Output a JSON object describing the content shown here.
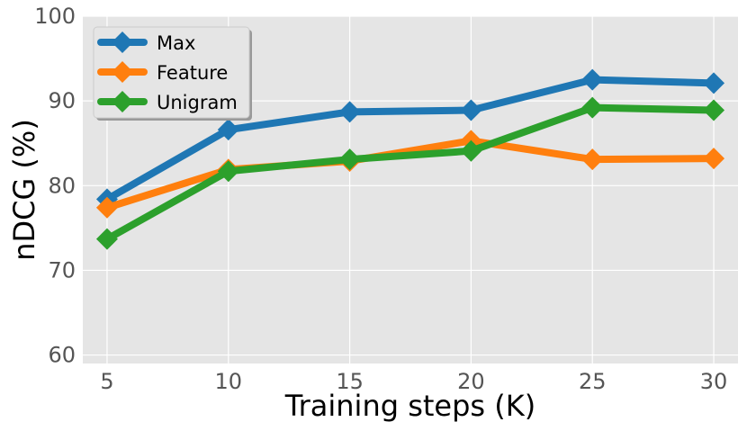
{
  "chart_data": {
    "type": "line",
    "title": "",
    "xlabel": "Training steps (K)",
    "ylabel": "nDCG (%)",
    "x": [
      5,
      10,
      15,
      20,
      25,
      30
    ],
    "xticks": [
      "5",
      "10",
      "15",
      "20",
      "25",
      "30"
    ],
    "yticks": [
      "60",
      "70",
      "80",
      "90",
      "100"
    ],
    "xlim": [
      4,
      31
    ],
    "ylim": [
      59,
      100
    ],
    "grid": true,
    "legend_position": "upper-left",
    "background": "#e5e5e5",
    "series": [
      {
        "name": "Max",
        "color": "#1f77b4",
        "values": [
          78.4,
          86.6,
          88.7,
          88.9,
          92.5,
          92.1
        ]
      },
      {
        "name": "Feature",
        "color": "#ff7f0e",
        "values": [
          77.4,
          81.9,
          82.9,
          85.3,
          83.1,
          83.2
        ]
      },
      {
        "name": "Unigram",
        "color": "#2ca02c",
        "values": [
          73.7,
          81.7,
          83.1,
          84.1,
          89.2,
          88.9
        ]
      }
    ],
    "marker": "diamond"
  }
}
